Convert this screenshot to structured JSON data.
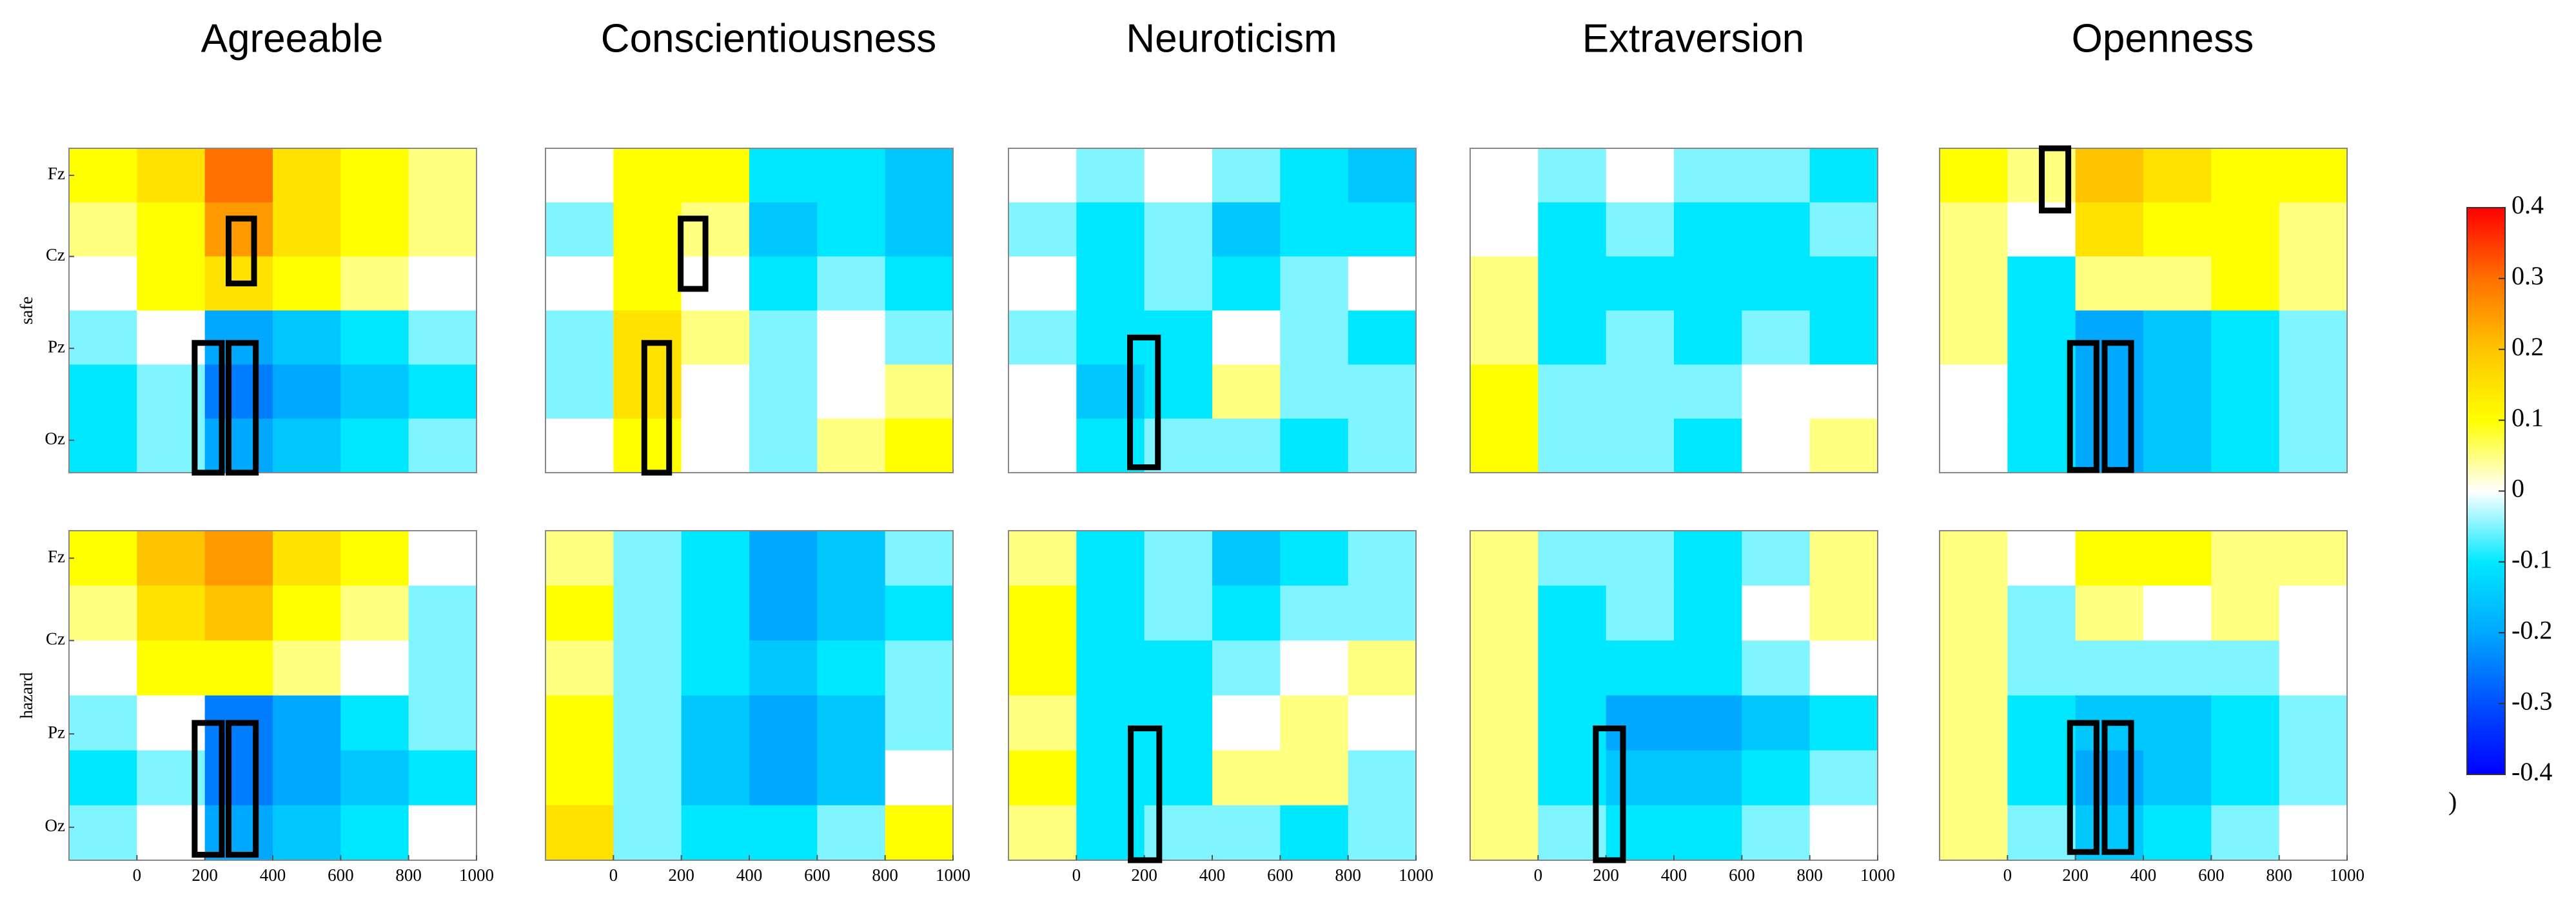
{
  "chart_data": [
    {
      "type": "heatmap",
      "title": "Agreeable",
      "ylabel": "safe",
      "xlim": [
        -200,
        1000
      ],
      "ylim": [
        0,
        6
      ],
      "yinvert": true,
      "yticks": [
        {
          "value": 0.5,
          "label": "Fz"
        },
        {
          "value": 2,
          "label": "Cz"
        },
        {
          "value": 3.7,
          "label": "Pz"
        },
        {
          "value": 5.4,
          "label": "Oz"
        }
      ],
      "z": [
        [
          0.1,
          0.15,
          0.3,
          0.15,
          0.1,
          0.05
        ],
        [
          0.05,
          0.1,
          0.25,
          0.15,
          0.1,
          0.05
        ],
        [
          0,
          0.1,
          0.15,
          0.1,
          0.05,
          0
        ],
        [
          -0.05,
          0,
          -0.2,
          -0.15,
          -0.1,
          -0.05
        ],
        [
          -0.1,
          -0.05,
          -0.25,
          -0.2,
          -0.15,
          -0.1
        ],
        [
          -0.1,
          -0.05,
          -0.2,
          -0.15,
          -0.1,
          -0.05
        ]
      ],
      "highlights": [
        {
          "x": [
            270,
            345
          ],
          "y": [
            1.3,
            2.5
          ]
        },
        {
          "x": [
            170,
            250
          ],
          "y": [
            3.6,
            6
          ]
        },
        {
          "x": [
            270,
            350
          ],
          "y": [
            3.6,
            6
          ]
        }
      ]
    },
    {
      "type": "heatmap",
      "title": "Conscientiousness",
      "xlim": [
        -200,
        1000
      ],
      "ylim": [
        0,
        6
      ],
      "yinvert": true,
      "z": [
        [
          0,
          0.1,
          0.1,
          -0.1,
          -0.1,
          -0.15
        ],
        [
          -0.05,
          0.1,
          0.05,
          -0.15,
          -0.1,
          -0.15
        ],
        [
          0,
          0.1,
          0,
          -0.1,
          -0.05,
          -0.1
        ],
        [
          -0.05,
          0.15,
          0.05,
          -0.05,
          0,
          -0.05
        ],
        [
          -0.05,
          0.15,
          0,
          -0.05,
          0,
          0.05
        ],
        [
          0,
          0.1,
          0,
          -0.05,
          0.05,
          0.1
        ]
      ],
      "highlights": [
        {
          "x": [
            198,
            271
          ],
          "y": [
            1.3,
            2.6
          ]
        },
        {
          "x": [
            91,
            164
          ],
          "y": [
            3.6,
            6
          ]
        }
      ]
    },
    {
      "type": "heatmap",
      "title": "Neuroticism",
      "xlim": [
        -200,
        1000
      ],
      "ylim": [
        0,
        6
      ],
      "yinvert": true,
      "z": [
        [
          0,
          -0.05,
          0,
          -0.05,
          -0.1,
          -0.15
        ],
        [
          -0.05,
          -0.1,
          -0.05,
          -0.15,
          -0.1,
          -0.1
        ],
        [
          0,
          -0.1,
          -0.05,
          -0.1,
          -0.05,
          0
        ],
        [
          -0.05,
          -0.1,
          -0.1,
          0,
          -0.05,
          -0.1
        ],
        [
          0,
          -0.15,
          -0.1,
          0.05,
          -0.05,
          -0.05
        ],
        [
          0,
          -0.1,
          -0.05,
          -0.05,
          -0.1,
          -0.05
        ]
      ],
      "highlights": [
        {
          "x": [
            158,
            240
          ],
          "y": [
            3.5,
            5.9
          ]
        }
      ]
    },
    {
      "type": "heatmap",
      "title": "Extraversion",
      "xlim": [
        -200,
        1000
      ],
      "ylim": [
        0,
        6
      ],
      "yinvert": true,
      "z": [
        [
          0,
          -0.05,
          0,
          -0.05,
          -0.05,
          -0.1
        ],
        [
          0,
          -0.1,
          -0.05,
          -0.1,
          -0.1,
          -0.05
        ],
        [
          0.05,
          -0.1,
          -0.1,
          -0.1,
          -0.1,
          -0.1
        ],
        [
          0.05,
          -0.1,
          -0.05,
          -0.1,
          -0.05,
          -0.1
        ],
        [
          0.1,
          -0.05,
          -0.05,
          -0.05,
          0,
          0
        ],
        [
          0.1,
          -0.05,
          -0.05,
          -0.1,
          0,
          0.05
        ]
      ],
      "highlights": []
    },
    {
      "type": "heatmap",
      "title": "Openness",
      "xlim": [
        -200,
        1000
      ],
      "ylim": [
        0,
        6
      ],
      "yinvert": true,
      "z": [
        [
          0.1,
          0.05,
          0.2,
          0.15,
          0.1,
          0.1
        ],
        [
          0.05,
          0,
          0.15,
          0.1,
          0.1,
          0.05
        ],
        [
          0.05,
          -0.1,
          0.05,
          0.05,
          0.1,
          0.05
        ],
        [
          0.05,
          -0.1,
          -0.2,
          -0.15,
          -0.1,
          -0.05
        ],
        [
          0,
          -0.1,
          -0.2,
          -0.15,
          -0.1,
          -0.05
        ],
        [
          0,
          -0.1,
          -0.2,
          -0.15,
          -0.1,
          -0.05
        ]
      ],
      "highlights": [
        {
          "x": [
            101,
            179
          ],
          "y": [
            0,
            1.15
          ]
        },
        {
          "x": [
            184,
            262
          ],
          "y": [
            3.6,
            5.95
          ]
        },
        {
          "x": [
            286,
            364
          ],
          "y": [
            3.6,
            5.95
          ]
        }
      ]
    },
    {
      "type": "heatmap",
      "ylabel": "hazard",
      "xlim": [
        -200,
        1000
      ],
      "ylim": [
        0,
        6
      ],
      "yinvert": true,
      "yticks": [
        {
          "value": 0.5,
          "label": "Fz"
        },
        {
          "value": 2,
          "label": "Cz"
        },
        {
          "value": 3.7,
          "label": "Pz"
        },
        {
          "value": 5.4,
          "label": "Oz"
        }
      ],
      "xticks": [
        0,
        200,
        400,
        600,
        800,
        1000
      ],
      "z": [
        [
          0.1,
          0.2,
          0.25,
          0.15,
          0.1,
          0
        ],
        [
          0.05,
          0.15,
          0.2,
          0.1,
          0.05,
          -0.05
        ],
        [
          0,
          0.1,
          0.1,
          0.05,
          0,
          -0.05
        ],
        [
          -0.05,
          0,
          -0.25,
          -0.2,
          -0.1,
          -0.05
        ],
        [
          -0.1,
          -0.05,
          -0.25,
          -0.2,
          -0.15,
          -0.1
        ],
        [
          -0.05,
          0,
          -0.2,
          -0.15,
          -0.1,
          0
        ]
      ],
      "highlights": [
        {
          "x": [
            170,
            250
          ],
          "y": [
            3.5,
            5.9
          ]
        },
        {
          "x": [
            270,
            350
          ],
          "y": [
            3.5,
            5.9
          ]
        }
      ]
    },
    {
      "type": "heatmap",
      "xlim": [
        -200,
        1000
      ],
      "ylim": [
        0,
        6
      ],
      "yinvert": true,
      "xticks": [
        0,
        200,
        400,
        600,
        800,
        1000
      ],
      "z": [
        [
          0.05,
          -0.05,
          -0.1,
          -0.2,
          -0.15,
          -0.05
        ],
        [
          0.1,
          -0.05,
          -0.1,
          -0.2,
          -0.15,
          -0.1
        ],
        [
          0.05,
          -0.05,
          -0.1,
          -0.15,
          -0.1,
          -0.05
        ],
        [
          0.1,
          -0.05,
          -0.15,
          -0.2,
          -0.15,
          -0.05
        ],
        [
          0.1,
          -0.05,
          -0.15,
          -0.2,
          -0.15,
          0
        ],
        [
          0.15,
          -0.05,
          -0.1,
          -0.1,
          -0.05,
          0.1
        ]
      ],
      "highlights": []
    },
    {
      "type": "heatmap",
      "xlim": [
        -200,
        1000
      ],
      "ylim": [
        0,
        6
      ],
      "yinvert": true,
      "xticks": [
        0,
        200,
        400,
        600,
        800,
        1000
      ],
      "z": [
        [
          0.05,
          -0.1,
          -0.05,
          -0.15,
          -0.1,
          -0.05
        ],
        [
          0.1,
          -0.1,
          -0.05,
          -0.1,
          -0.05,
          -0.05
        ],
        [
          0.1,
          -0.1,
          -0.1,
          -0.05,
          0,
          0.05
        ],
        [
          0.05,
          -0.1,
          -0.1,
          0,
          0.05,
          0
        ],
        [
          0.1,
          -0.1,
          -0.1,
          0.05,
          0.05,
          -0.05
        ],
        [
          0.05,
          -0.1,
          -0.05,
          -0.05,
          -0.1,
          -0.05
        ]
      ],
      "highlights": [
        {
          "x": [
            160,
            244
          ],
          "y": [
            3.6,
            6
          ]
        }
      ]
    },
    {
      "type": "heatmap",
      "xlim": [
        -200,
        1000
      ],
      "ylim": [
        0,
        6
      ],
      "yinvert": true,
      "xticks": [
        0,
        200,
        400,
        600,
        800,
        1000
      ],
      "z": [
        [
          0.05,
          -0.05,
          -0.05,
          -0.1,
          -0.05,
          0.05
        ],
        [
          0.05,
          -0.1,
          -0.05,
          -0.1,
          0,
          0.05
        ],
        [
          0.05,
          -0.1,
          -0.1,
          -0.1,
          -0.05,
          0
        ],
        [
          0.05,
          -0.1,
          -0.2,
          -0.2,
          -0.15,
          -0.1
        ],
        [
          0.05,
          -0.1,
          -0.15,
          -0.15,
          -0.1,
          -0.05
        ],
        [
          0.05,
          -0.05,
          -0.1,
          -0.1,
          -0.05,
          0
        ]
      ],
      "highlights": [
        {
          "x": [
            170,
            250
          ],
          "y": [
            3.6,
            6
          ]
        }
      ]
    },
    {
      "type": "heatmap",
      "xlim": [
        -200,
        1000
      ],
      "ylim": [
        0,
        6
      ],
      "yinvert": true,
      "xticks": [
        0,
        200,
        400,
        600,
        800,
        1000
      ],
      "z": [
        [
          0.05,
          0,
          0.1,
          0.1,
          0.05,
          0.05
        ],
        [
          0.05,
          -0.05,
          0.05,
          0,
          0.05,
          0
        ],
        [
          0.05,
          -0.05,
          -0.05,
          -0.05,
          -0.05,
          0
        ],
        [
          0.05,
          -0.1,
          -0.15,
          -0.15,
          -0.1,
          -0.05
        ],
        [
          0.05,
          -0.1,
          -0.2,
          -0.15,
          -0.1,
          -0.05
        ],
        [
          0.05,
          -0.05,
          -0.15,
          -0.1,
          -0.05,
          0
        ]
      ],
      "highlights": [
        {
          "x": [
            184,
            262
          ],
          "y": [
            3.5,
            5.85
          ]
        },
        {
          "x": [
            286,
            364
          ],
          "y": [
            3.5,
            5.85
          ]
        }
      ]
    }
  ],
  "colorbar": {
    "zlim": [
      -0.4,
      0.4
    ],
    "zticks": [
      0.4,
      0.3,
      0.2,
      0.1,
      0,
      -0.1,
      -0.2,
      -0.3,
      -0.4
    ],
    "colormap": [
      "#0000ff",
      "#0050ff",
      "#00a8ff",
      "#00e8ff",
      "#ffffff",
      "#ffff00",
      "#ffc400",
      "#ff7000",
      "#ff0000"
    ]
  },
  "stray_text": ")"
}
